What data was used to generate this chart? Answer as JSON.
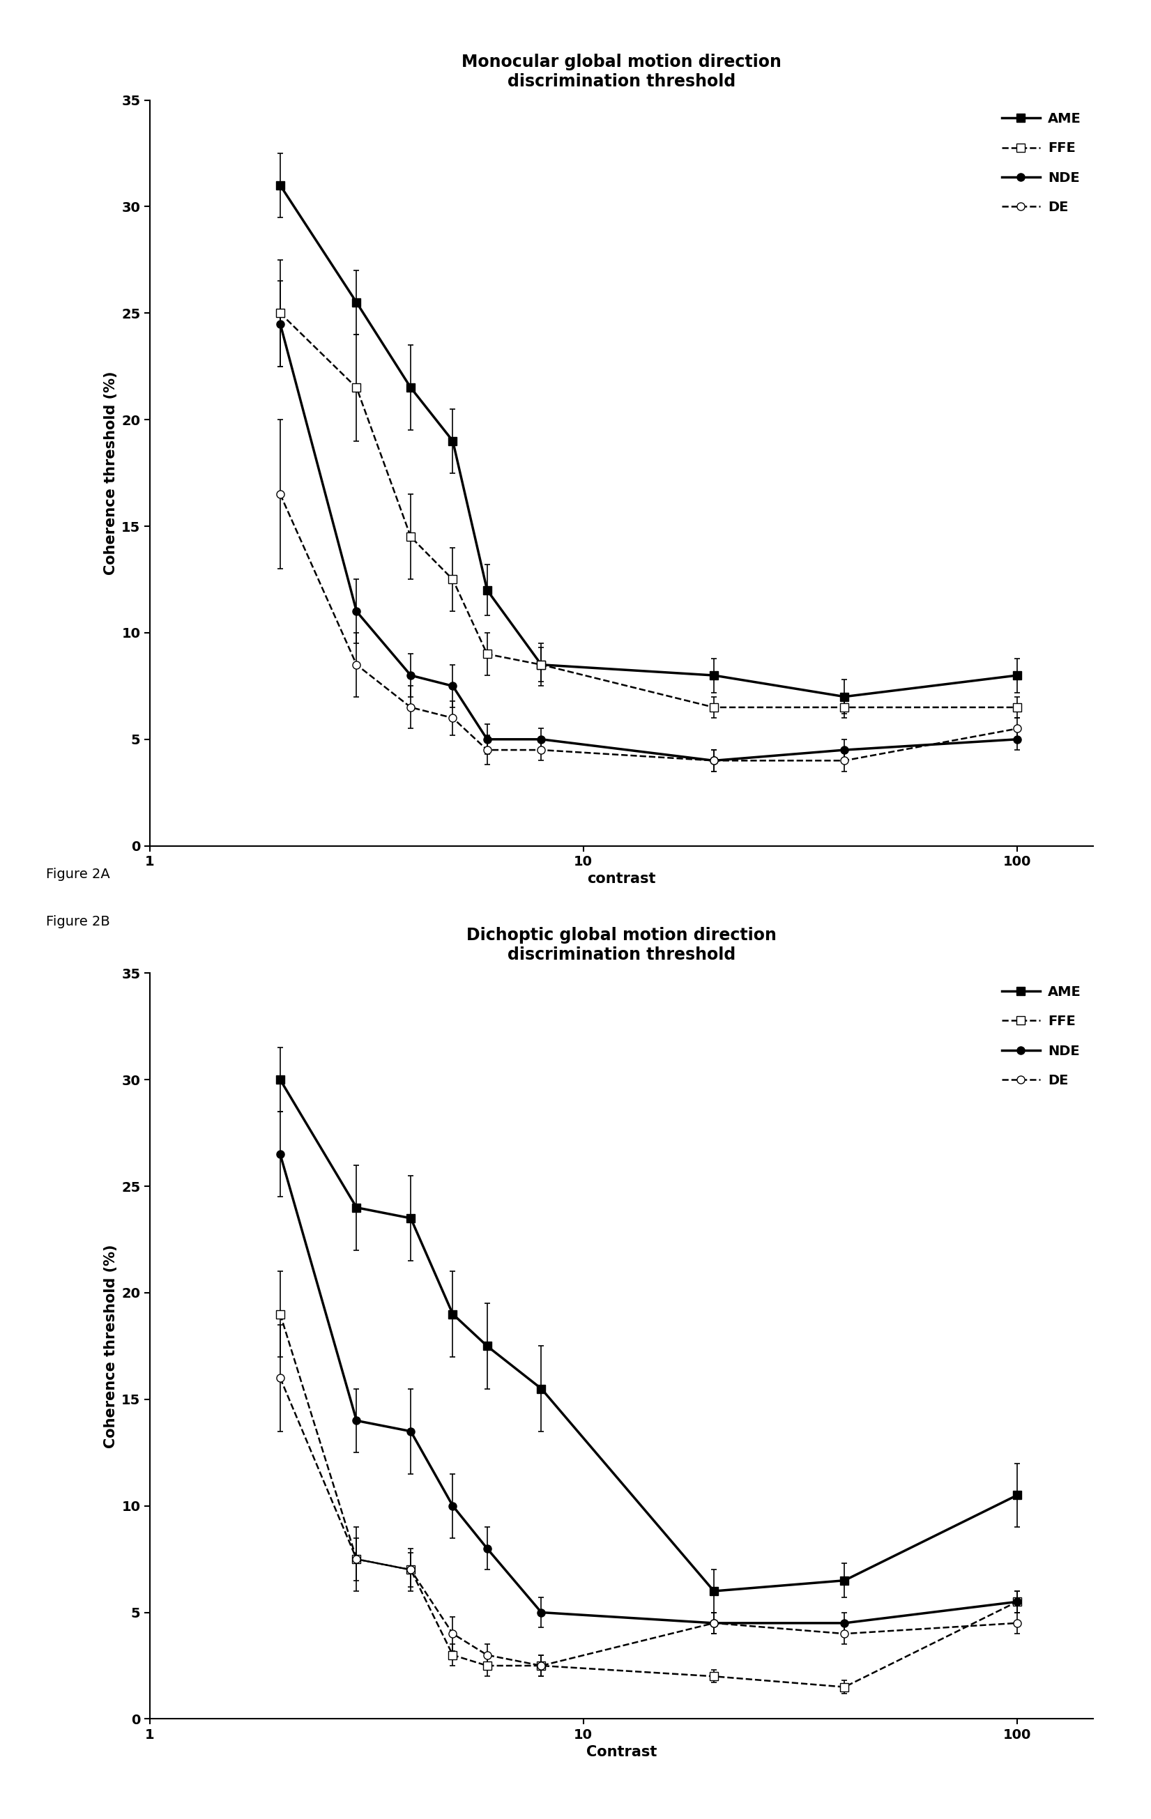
{
  "fig2A": {
    "title": "Monocular global motion direction\ndiscrimination threshold",
    "xlabel": "contrast",
    "ylabel": "Coherence threshold (%)",
    "xlim": [
      1,
      150
    ],
    "ylim": [
      0,
      35
    ],
    "yticks": [
      0,
      5,
      10,
      15,
      20,
      25,
      30,
      35
    ],
    "xtick_labels": [
      "1",
      "10",
      "100"
    ],
    "xtick_vals": [
      1,
      10,
      100
    ],
    "series": {
      "AME": {
        "x": [
          2,
          3,
          4,
          5,
          6,
          8,
          20,
          40,
          100
        ],
        "y": [
          31.0,
          25.5,
          21.5,
          19.0,
          12.0,
          8.5,
          8.0,
          7.0,
          8.0
        ],
        "yerr": [
          1.5,
          1.5,
          2.0,
          1.5,
          1.2,
          1.0,
          0.8,
          0.8,
          0.8
        ],
        "color": "#000000",
        "linestyle": "-",
        "marker": "s",
        "markerfacecolor": "#000000",
        "linewidth": 2.5,
        "markersize": 8
      },
      "FFE": {
        "x": [
          2,
          3,
          4,
          5,
          6,
          8,
          20,
          40,
          100
        ],
        "y": [
          25.0,
          21.5,
          14.5,
          12.5,
          9.0,
          8.5,
          6.5,
          6.5,
          6.5
        ],
        "yerr": [
          2.5,
          2.5,
          2.0,
          1.5,
          1.0,
          0.8,
          0.5,
          0.5,
          0.5
        ],
        "color": "#000000",
        "linestyle": "--",
        "marker": "s",
        "markerfacecolor": "#ffffff",
        "linewidth": 1.8,
        "markersize": 8
      },
      "NDE": {
        "x": [
          2,
          3,
          4,
          5,
          6,
          8,
          20,
          40,
          100
        ],
        "y": [
          24.5,
          11.0,
          8.0,
          7.5,
          5.0,
          5.0,
          4.0,
          4.5,
          5.0
        ],
        "yerr": [
          2.0,
          1.5,
          1.0,
          1.0,
          0.7,
          0.5,
          0.5,
          0.5,
          0.5
        ],
        "color": "#000000",
        "linestyle": "-",
        "marker": "o",
        "markerfacecolor": "#000000",
        "linewidth": 2.5,
        "markersize": 8
      },
      "DE": {
        "x": [
          2,
          3,
          4,
          5,
          6,
          8,
          20,
          40,
          100
        ],
        "y": [
          16.5,
          8.5,
          6.5,
          6.0,
          4.5,
          4.5,
          4.0,
          4.0,
          5.5
        ],
        "yerr": [
          3.5,
          1.5,
          1.0,
          0.8,
          0.7,
          0.5,
          0.5,
          0.5,
          0.5
        ],
        "color": "#000000",
        "linestyle": "--",
        "marker": "o",
        "markerfacecolor": "#ffffff",
        "linewidth": 1.8,
        "markersize": 8
      }
    }
  },
  "fig2B": {
    "title": "Dichoptic global motion direction\ndiscrimination threshold",
    "xlabel": "Contrast",
    "ylabel": "Coherence threshold (%)",
    "xlim": [
      1,
      150
    ],
    "ylim": [
      0,
      35
    ],
    "yticks": [
      0,
      5,
      10,
      15,
      20,
      25,
      30,
      35
    ],
    "xtick_labels": [
      "1",
      "10",
      "100"
    ],
    "xtick_vals": [
      1,
      10,
      100
    ],
    "series": {
      "AME": {
        "x": [
          2,
          3,
          4,
          5,
          6,
          8,
          20,
          40,
          100
        ],
        "y": [
          30.0,
          24.0,
          23.5,
          19.0,
          17.5,
          15.5,
          6.0,
          6.5,
          10.5
        ],
        "yerr": [
          1.5,
          2.0,
          2.0,
          2.0,
          2.0,
          2.0,
          1.0,
          0.8,
          1.5
        ],
        "color": "#000000",
        "linestyle": "-",
        "marker": "s",
        "markerfacecolor": "#000000",
        "linewidth": 2.5,
        "markersize": 8
      },
      "FFE": {
        "x": [
          2,
          3,
          4,
          5,
          6,
          8,
          20,
          40,
          100
        ],
        "y": [
          19.0,
          7.5,
          7.0,
          3.0,
          2.5,
          2.5,
          2.0,
          1.5,
          5.5
        ],
        "yerr": [
          2.0,
          1.0,
          0.8,
          0.5,
          0.5,
          0.5,
          0.3,
          0.3,
          0.5
        ],
        "color": "#000000",
        "linestyle": "--",
        "marker": "s",
        "markerfacecolor": "#ffffff",
        "linewidth": 1.8,
        "markersize": 8
      },
      "NDE": {
        "x": [
          2,
          3,
          4,
          5,
          6,
          8,
          20,
          40,
          100
        ],
        "y": [
          26.5,
          14.0,
          13.5,
          10.0,
          8.0,
          5.0,
          4.5,
          4.5,
          5.5
        ],
        "yerr": [
          2.0,
          1.5,
          2.0,
          1.5,
          1.0,
          0.7,
          0.5,
          0.5,
          0.5
        ],
        "color": "#000000",
        "linestyle": "-",
        "marker": "o",
        "markerfacecolor": "#000000",
        "linewidth": 2.5,
        "markersize": 8
      },
      "DE": {
        "x": [
          2,
          3,
          4,
          5,
          6,
          8,
          20,
          40,
          100
        ],
        "y": [
          16.0,
          7.5,
          7.0,
          4.0,
          3.0,
          2.5,
          4.5,
          4.0,
          4.5
        ],
        "yerr": [
          2.5,
          1.5,
          1.0,
          0.8,
          0.5,
          0.5,
          0.5,
          0.5,
          0.5
        ],
        "color": "#000000",
        "linestyle": "--",
        "marker": "o",
        "markerfacecolor": "#ffffff",
        "linewidth": 1.8,
        "markersize": 8
      }
    }
  },
  "figure_labels": [
    "Figure 2A",
    "Figure 2B"
  ],
  "legend_order": [
    "AME",
    "FFE",
    "NDE",
    "DE"
  ],
  "background_color": "#ffffff",
  "font_color": "#000000",
  "title_fontsize": 17,
  "label_fontsize": 15,
  "tick_fontsize": 14,
  "legend_fontsize": 14
}
